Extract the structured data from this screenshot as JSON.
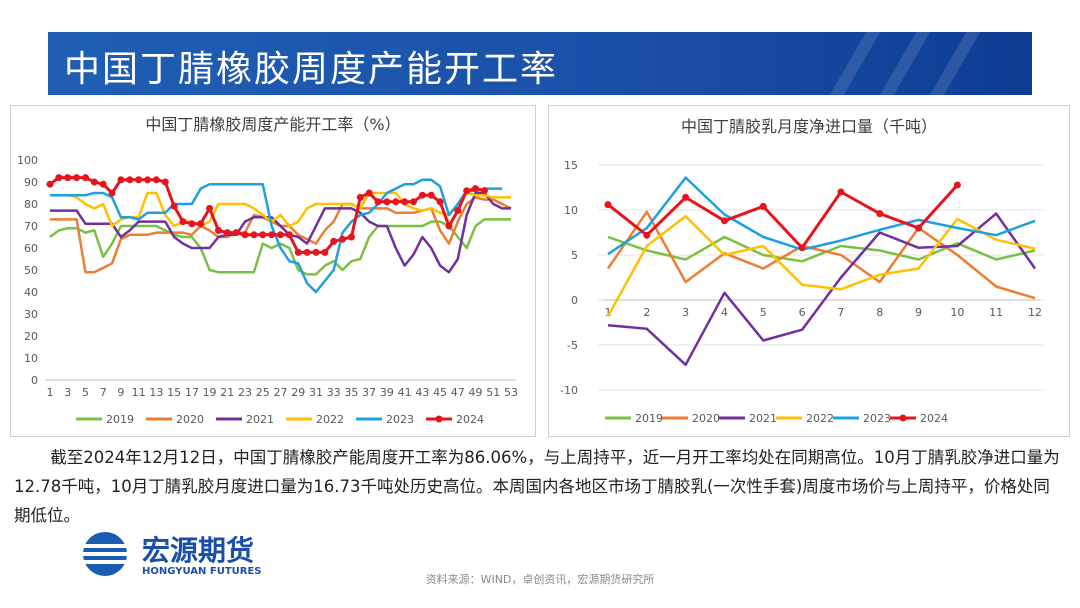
{
  "header": {
    "title": "中国丁腈橡胶周度产能开工率"
  },
  "chart_data": [
    {
      "type": "line",
      "title": "中国丁腈橡胶周度产能开工率（%）",
      "x": [
        1,
        2,
        3,
        4,
        5,
        6,
        7,
        8,
        9,
        10,
        11,
        12,
        13,
        14,
        15,
        16,
        17,
        18,
        19,
        20,
        21,
        22,
        23,
        24,
        25,
        26,
        27,
        28,
        29,
        30,
        31,
        32,
        33,
        34,
        35,
        36,
        37,
        38,
        39,
        40,
        41,
        42,
        43,
        44,
        45,
        46,
        47,
        48,
        49,
        50,
        51,
        52,
        53
      ],
      "xlim": [
        1,
        53
      ],
      "xticks": [
        1,
        3,
        5,
        7,
        9,
        11,
        13,
        15,
        17,
        19,
        21,
        23,
        25,
        27,
        29,
        31,
        33,
        35,
        37,
        39,
        41,
        43,
        45,
        47,
        49,
        51,
        53
      ],
      "ylim": [
        0,
        100
      ],
      "yticks": [
        0,
        10,
        20,
        30,
        40,
        50,
        60,
        70,
        80,
        90,
        100
      ],
      "grid": false,
      "legend": "bottom",
      "series": [
        {
          "name": "2019",
          "color": "#7ac143",
          "values": [
            65,
            68,
            69,
            69,
            67,
            68,
            56,
            62,
            70,
            70,
            70,
            70,
            70,
            68,
            66,
            65,
            65,
            60,
            50,
            49,
            49,
            49,
            49,
            49,
            62,
            60,
            62,
            60,
            50,
            48,
            48,
            52,
            54,
            50,
            54,
            55,
            65,
            70,
            70,
            70,
            70,
            70,
            70,
            72,
            72,
            70,
            65,
            60,
            70,
            73,
            73,
            73,
            73
          ]
        },
        {
          "name": "2020",
          "color": "#ed7d31",
          "values": [
            73,
            73,
            73,
            73,
            49,
            49,
            51,
            53,
            64,
            66,
            66,
            66,
            67,
            67,
            67,
            67,
            66,
            70,
            68,
            65,
            65,
            67,
            67,
            75,
            74,
            72,
            70,
            70,
            66,
            64,
            62,
            68,
            72,
            80,
            80,
            78,
            78,
            78,
            78,
            76,
            76,
            76,
            77,
            78,
            68,
            62,
            72,
            80,
            83,
            82,
            82,
            80,
            78
          ]
        },
        {
          "name": "2021",
          "color": "#7030a0",
          "values": [
            77,
            77,
            77,
            77,
            71,
            71,
            71,
            71,
            65,
            68,
            72,
            72,
            72,
            72,
            65,
            62,
            60,
            60,
            60,
            65,
            66,
            66,
            72,
            74,
            74,
            74,
            70,
            66,
            65,
            62,
            70,
            78,
            78,
            78,
            78,
            76,
            72,
            70,
            70,
            60,
            52,
            57,
            65,
            60,
            52,
            49,
            55,
            75,
            85,
            85,
            80,
            78,
            78
          ]
        },
        {
          "name": "2022",
          "color": "#ffc000",
          "values": [
            84,
            84,
            84,
            83,
            80,
            78,
            80,
            70,
            73,
            74,
            74,
            85,
            85,
            75,
            70,
            72,
            72,
            70,
            72,
            80,
            80,
            80,
            80,
            78,
            75,
            72,
            75,
            70,
            72,
            78,
            80,
            80,
            80,
            80,
            80,
            78,
            85,
            85,
            85,
            85,
            80,
            78,
            77,
            78,
            76,
            75,
            80,
            85,
            84,
            84,
            83,
            83,
            83
          ]
        },
        {
          "name": "2023",
          "color": "#1ea0e0",
          "values": [
            84,
            84,
            84,
            84,
            84,
            85,
            85,
            83,
            74,
            74,
            73,
            76,
            76,
            76,
            80,
            80,
            80,
            87,
            89,
            89,
            89,
            89,
            89,
            89,
            89,
            70,
            60,
            54,
            53,
            44,
            40,
            45,
            50,
            67,
            72,
            75,
            76,
            80,
            85,
            87,
            89,
            89,
            91,
            91,
            88,
            75,
            80,
            86,
            86,
            87,
            87,
            87,
            null
          ]
        },
        {
          "name": "2024",
          "color": "#e8141b",
          "marker": "circle",
          "values": [
            89,
            92,
            92,
            92,
            92,
            90,
            89,
            85,
            91,
            91,
            91,
            91,
            91,
            90,
            79,
            72,
            71,
            71,
            78,
            68,
            67,
            67,
            66,
            66,
            66,
            66,
            66,
            66,
            58,
            58,
            58,
            58,
            63,
            64,
            65,
            83,
            85,
            81,
            81,
            81,
            81,
            81,
            84,
            84,
            81,
            70,
            77,
            86,
            87,
            86.06,
            null,
            null,
            null
          ]
        }
      ]
    },
    {
      "type": "line",
      "title": "中国丁腈胶乳月度净进口量（千吨）",
      "x": [
        1,
        2,
        3,
        4,
        5,
        6,
        7,
        8,
        9,
        10,
        11,
        12
      ],
      "xlim": [
        1,
        12
      ],
      "xticks": [
        1,
        2,
        3,
        4,
        5,
        6,
        7,
        8,
        9,
        10,
        11,
        12
      ],
      "ylim": [
        -10,
        15
      ],
      "yticks": [
        -10,
        -5,
        0,
        5,
        10,
        15
      ],
      "grid": true,
      "legend": "bottom",
      "series": [
        {
          "name": "2019",
          "color": "#7ac143",
          "values": [
            7,
            5.5,
            4.5,
            7,
            5,
            4.3,
            6,
            5.5,
            4.5,
            6.3,
            4.5,
            5.5
          ]
        },
        {
          "name": "2020",
          "color": "#ed7d31",
          "values": [
            3.5,
            9.8,
            2,
            5.2,
            3.5,
            6,
            5,
            2,
            8,
            5,
            1.5,
            0.2
          ]
        },
        {
          "name": "2021",
          "color": "#7030a0",
          "values": [
            -2.8,
            -3.2,
            -7.2,
            0.8,
            -4.5,
            -3.3,
            2.5,
            7.5,
            5.8,
            6,
            9.6,
            3.5
          ]
        },
        {
          "name": "2022",
          "color": "#ffc000",
          "values": [
            -1.8,
            6,
            9.3,
            5,
            6,
            1.7,
            1.2,
            2.8,
            3.5,
            9,
            6.7,
            5.7
          ]
        },
        {
          "name": "2023",
          "color": "#1ea0e0",
          "values": [
            5.1,
            8,
            13.6,
            9.5,
            7,
            5.6,
            6.6,
            7.8,
            8.9,
            8,
            7.2,
            8.8
          ]
        },
        {
          "name": "2024",
          "color": "#e8141b",
          "marker": "circle",
          "values": [
            10.6,
            7.2,
            11.4,
            8.8,
            10.4,
            5.8,
            12,
            9.6,
            8,
            12.78,
            null,
            null
          ]
        }
      ]
    }
  ],
  "body": {
    "text": "截至2024年12月12日，中国丁腈橡胶产能周度开工率为86.06%，与上周持平，近一月开工率均处在同期高位。10月丁腈乳胶净进口量为12.78千吨，10月丁腈乳胶月度进口量为16.73千吨处历史高位。本周国内各地区市场丁腈胶乳(一次性手套)周度市场价与上周持平，价格处同期低位。"
  },
  "footer": {
    "logo": "宏源期货",
    "logo_en": "HONGYUAN FUTURES",
    "source": "资料来源：WIND，卓创资讯，宏源期货研究所"
  }
}
